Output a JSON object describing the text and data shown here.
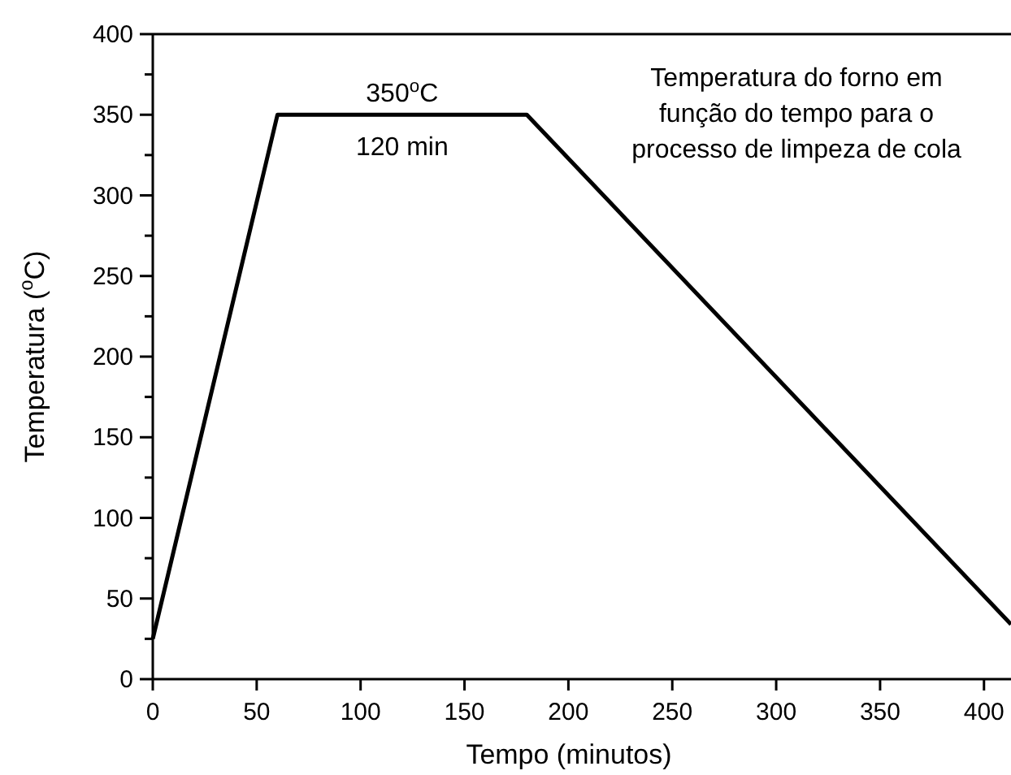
{
  "chart_data": {
    "type": "line",
    "xlabel": "Tempo (minutos)",
    "ylabel": "Temperatura ($^{o}$C)",
    "x": [
      0,
      60,
      180,
      413
    ],
    "series": [
      {
        "color": "#000000",
        "values": [
          25,
          350,
          350,
          34
        ]
      }
    ],
    "xlim": [
      0,
      413
    ],
    "xticks": [
      0,
      50,
      100,
      150,
      200,
      250,
      300,
      350,
      400
    ],
    "ylim": [
      0,
      400
    ],
    "yticks": [
      0,
      {
        "value": 25,
        "label": null
      },
      50,
      {
        "value": 75,
        "label": null
      },
      100,
      {
        "value": 125,
        "label": null
      },
      150,
      {
        "value": 175,
        "label": null
      },
      200,
      {
        "value": 225,
        "label": null
      },
      250,
      {
        "value": 275,
        "label": null
      },
      300,
      {
        "value": 325,
        "label": null
      },
      350,
      {
        "value": 375,
        "label": null
      },
      400
    ],
    "annotations": [
      {
        "text": "350$^{o}$C",
        "x": 120,
        "y": 350
      },
      {
        "text": "120 min",
        "x": 120,
        "y": 350
      },
      "Temperatura do forno em\nfunção do tempo para o\nprocesso de limpeza de cola"
    ],
    "grid": false,
    "marker": "none",
    "line_style": "solid"
  }
}
